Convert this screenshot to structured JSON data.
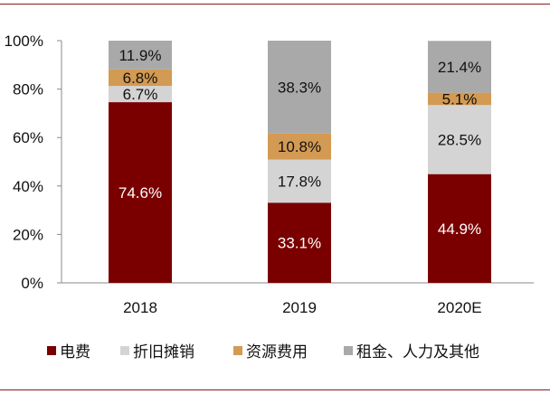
{
  "chart_data": {
    "type": "bar",
    "stacked": true,
    "percent_stacked": true,
    "categories": [
      "2018",
      "2019",
      "2020E"
    ],
    "series": [
      {
        "name": "电费",
        "color": "#7a0000",
        "label_color": "#ffffff",
        "values": [
          74.6,
          33.1,
          44.9
        ],
        "labels": [
          "74.6%",
          "33.1%",
          "44.9%"
        ]
      },
      {
        "name": "折旧摊销",
        "color": "#d4d4d4",
        "label_color": "#111111",
        "values": [
          6.7,
          17.8,
          28.5
        ],
        "labels": [
          "6.7%",
          "17.8%",
          "28.5%"
        ]
      },
      {
        "name": "资源费用",
        "color": "#d39a53",
        "label_color": "#111111",
        "values": [
          6.8,
          10.8,
          5.1
        ],
        "labels": [
          "6.8%",
          "10.8%",
          "5.1%"
        ]
      },
      {
        "name": "租金、人力及其他",
        "color": "#a9a9a9",
        "label_color": "#111111",
        "values": [
          11.9,
          38.3,
          21.4
        ],
        "labels": [
          "11.9%",
          "38.3%",
          "21.4%"
        ]
      }
    ],
    "y_ticks": [
      "0%",
      "20%",
      "40%",
      "60%",
      "80%",
      "100%"
    ],
    "ylim": [
      0,
      100
    ],
    "legend_position": "bottom",
    "grid": false
  }
}
